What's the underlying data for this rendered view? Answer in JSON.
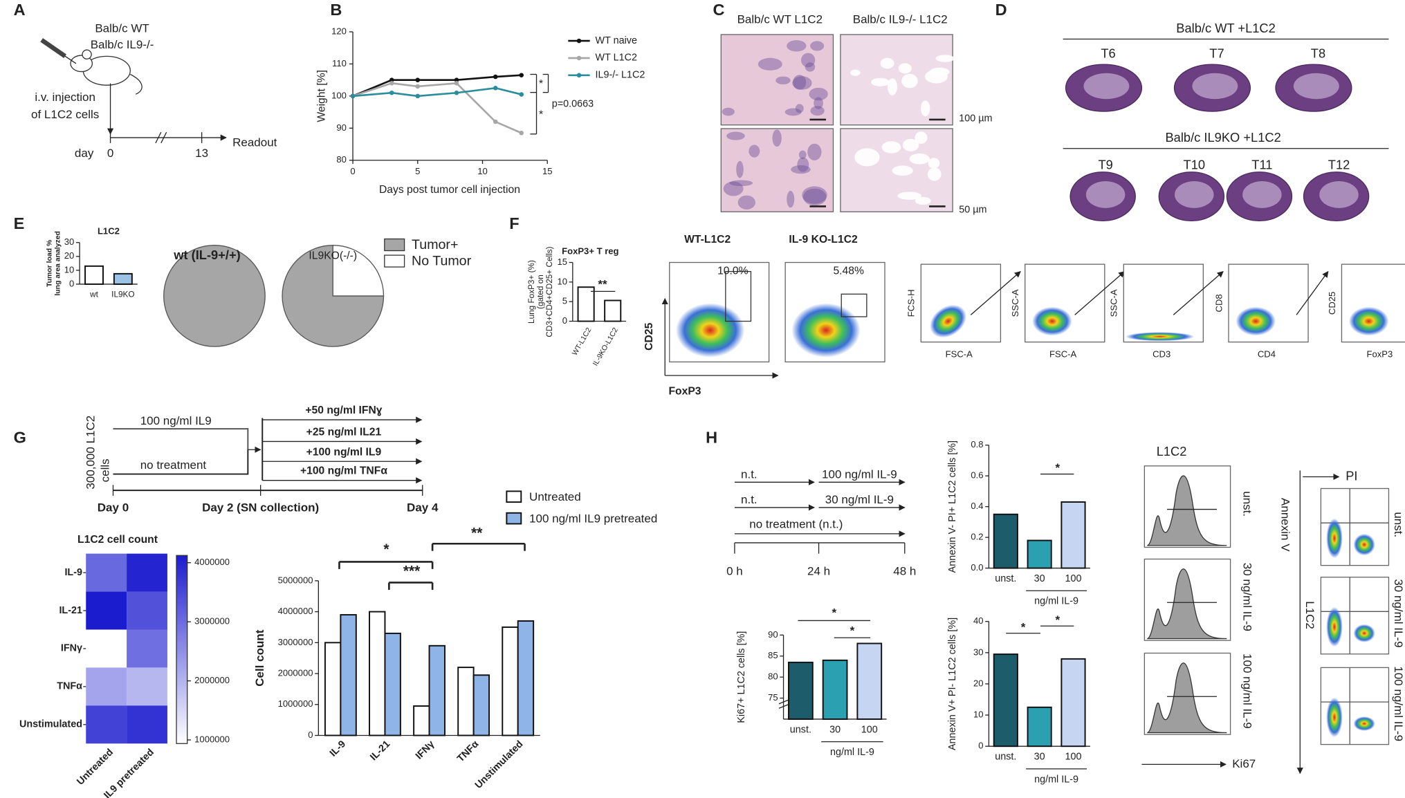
{
  "panels": {
    "A": {
      "letter": "A",
      "strains": [
        "Balb/c WT",
        "Balb/c IL9-/-"
      ],
      "injection": [
        "i.v. injection",
        "of L1C2 cells"
      ],
      "day": "day",
      "timepoints": [
        "0",
        "13"
      ],
      "readout": "Readout"
    },
    "B": {
      "letter": "B",
      "chart": {
        "type": "line",
        "ylabel": "Weight [%]",
        "xlabel": "Days post tumor cell injection",
        "x": [
          0,
          3,
          5,
          8,
          11,
          13
        ],
        "xlim": [
          0,
          15
        ],
        "ylim": [
          80,
          120
        ],
        "xticks": [
          0,
          5,
          10,
          15
        ],
        "yticks": [
          80,
          90,
          100,
          110,
          120
        ],
        "series": [
          {
            "name": "WT naive",
            "color": "#111111",
            "values": [
              100,
              105,
              105,
              105,
              106,
              106.5
            ]
          },
          {
            "name": "WT L1C2",
            "color": "#a6a6a6",
            "values": [
              100,
              104,
              103,
              104,
              92,
              88.5
            ]
          },
          {
            "name": "IL9-/- L1C2",
            "color": "#2a8c9c",
            "values": [
              100,
              101,
              100,
              101,
              102.5,
              100.5
            ]
          }
        ],
        "annotations": [
          "*",
          "*",
          "p=0.0663"
        ]
      }
    },
    "C": {
      "letter": "C",
      "columns": [
        "Balb/c WT L1C2",
        "Balb/c IL9-/- L1C2"
      ],
      "scale_bars": [
        "100 µm",
        "50 µm"
      ]
    },
    "D": {
      "letter": "D",
      "groups": [
        {
          "title": "Balb/c WT +L1C2",
          "samples": [
            "T6",
            "T7",
            "T8"
          ]
        },
        {
          "title": "Balb/c IL9KO +L1C2",
          "samples": [
            "T9",
            "T10",
            "T11",
            "T12"
          ]
        }
      ]
    },
    "E": {
      "letter": "E",
      "bar": {
        "type": "bar",
        "title": "L1C2",
        "ylabel": [
          "Tumor load %",
          "lung area analyzed"
        ],
        "categories": [
          "wt",
          "IL9KO"
        ],
        "values": [
          13,
          7.5
        ],
        "colors": [
          "#ffffff",
          "#9cc3e6"
        ],
        "ylim": [
          0,
          30
        ],
        "yticks": [
          0,
          10,
          20,
          30
        ]
      },
      "pies": {
        "type": "pie",
        "labels": [
          "Tumor+",
          "No Tumor"
        ],
        "colors": [
          "#a6a6a6",
          "#ffffff"
        ],
        "charts": [
          {
            "title": "wt (IL-9+/+)",
            "values": [
              100,
              0
            ]
          },
          {
            "title": "IL9KO(-/-)",
            "values": [
              75,
              25
            ]
          }
        ]
      }
    },
    "F": {
      "letter": "F",
      "bar": {
        "type": "bar",
        "title": "FoxP3+  T reg",
        "ylabel": [
          "Lung FoxP3+ (%)",
          "(gated on",
          "CD3+CD4+CD25+ Cells)"
        ],
        "categories": [
          "WT-L1C2",
          "IL-9KO-L1C2"
        ],
        "values": [
          8.7,
          5.3
        ],
        "colors": [
          "#ffffff",
          "#ffffff"
        ],
        "ylim": [
          0,
          15
        ],
        "yticks": [
          0,
          5,
          10,
          15
        ],
        "annotations": [
          "**"
        ]
      },
      "flow": {
        "samples": [
          "WT-L1C2",
          "IL-9 KO-L1C2"
        ],
        "gate_percent": [
          "10.0%",
          "5.48%"
        ],
        "y_axis": "CD25",
        "x_axis": "FoxP3"
      },
      "gating": [
        {
          "y": "FCS-H",
          "x": "FSC-A"
        },
        {
          "y": "SSC-A",
          "x": "FSC-A"
        },
        {
          "y": "SSC-A",
          "x": "CD3"
        },
        {
          "y": "CD8",
          "x": "CD4"
        },
        {
          "y": "CD25",
          "x": "FoxP3"
        }
      ]
    },
    "G": {
      "letter": "G",
      "scheme": {
        "cells": [
          "300,000 L1C2",
          "cells"
        ],
        "pretreatments": [
          "100 ng/ml IL9",
          "no treatment"
        ],
        "stimuli": [
          "+50 ng/ml IFNɣ",
          "+25 ng/ml IL21",
          "+100 ng/ml IL9",
          "+100 ng/ml TNFα"
        ],
        "timeline": [
          "Day 0",
          "Day 2 (SN collection)",
          "Day 4"
        ]
      },
      "heatmap": {
        "type": "heatmap",
        "title": "L1C2 cell count",
        "rows": [
          "IL-9",
          "IL-21",
          "IFNγ",
          "TNFα",
          "Unstimulated"
        ],
        "columns": [
          "Untreated",
          "IL9 pretreated"
        ],
        "values": [
          [
            3000000,
            3900000
          ],
          [
            4000000,
            3300000
          ],
          [
            950000,
            2900000
          ],
          [
            2200000,
            1950000
          ],
          [
            3500000,
            3700000
          ]
        ],
        "clim": [
          1000000,
          4000000
        ],
        "cticks": [
          1000000,
          2000000,
          3000000,
          4000000
        ],
        "colors": [
          "#ffffff",
          "#1c1ccf"
        ]
      },
      "bar": {
        "type": "bar",
        "ylabel": "Cell count",
        "categories": [
          "IL-9",
          "IL-21",
          "IFNγ",
          "TNFα",
          "Unstimulated"
        ],
        "series": [
          {
            "name": "Untreated",
            "color": "#ffffff",
            "values": [
              3000000,
              4000000,
              950000,
              2200000,
              3500000
            ]
          },
          {
            "name": "100 ng/ml IL9 pretreated",
            "color": "#8fb4e8",
            "values": [
              3900000,
              3300000,
              2900000,
              1950000,
              3700000
            ]
          }
        ],
        "ylim": [
          0,
          5000000
        ],
        "yticks": [
          0,
          1000000,
          2000000,
          3000000,
          4000000,
          5000000
        ],
        "annotations": [
          "*",
          "***",
          "**"
        ]
      }
    },
    "H": {
      "letter": "H",
      "scheme": {
        "arms": [
          {
            "pre": "n.t.",
            "treatment": "100 ng/ml IL-9"
          },
          {
            "pre": "n.t.",
            "treatment": "30 ng/ml IL-9"
          }
        ],
        "control": "no treatment (n.t.)",
        "timeline": [
          "0 h",
          "24 h",
          "48 h"
        ]
      },
      "charts": [
        {
          "type": "bar",
          "ylabel": "Ki67+ L1C2 cells [%]",
          "categories": [
            "unst.",
            "30",
            "100"
          ],
          "xlabel": "ng/ml IL-9",
          "values": [
            83.5,
            84,
            88
          ],
          "colors": [
            "#1d5c6b",
            "#2aa0b0",
            "#c5d5f2"
          ],
          "ylim": [
            70,
            90
          ],
          "yticks": [
            75,
            80,
            85,
            90
          ],
          "annotations": [
            "*",
            "*"
          ]
        },
        {
          "type": "bar",
          "ylabel": "Annexin V- PI+ L1C2 cells [%]",
          "categories": [
            "unst.",
            "30",
            "100"
          ],
          "xlabel": "ng/ml IL-9",
          "values": [
            0.35,
            0.18,
            0.43
          ],
          "colors": [
            "#1d5c6b",
            "#2aa0b0",
            "#c5d5f2"
          ],
          "ylim": [
            0,
            0.8
          ],
          "yticks": [
            {
              "value": 0,
              "label": "0.0"
            },
            0.2,
            0.4,
            0.6,
            0.8
          ],
          "annotations": [
            "*"
          ]
        },
        {
          "type": "bar",
          "ylabel": "Annexin V+ PI- L1C2 cells [%]",
          "categories": [
            "unst.",
            "30",
            "100"
          ],
          "xlabel": "ng/ml IL-9",
          "values": [
            29.5,
            12.5,
            28
          ],
          "colors": [
            "#1d5c6b",
            "#2aa0b0",
            "#c5d5f2"
          ],
          "ylim": [
            0,
            40
          ],
          "yticks": [
            0,
            10,
            20,
            30,
            40
          ],
          "annotations": [
            "*",
            "*"
          ]
        }
      ],
      "histograms": {
        "title": "L1C2",
        "conditions": [
          "unst.",
          "30 ng/ml IL-9",
          "100 ng/ml IL-9"
        ],
        "x_axis": "Ki67"
      },
      "flow": {
        "x_axis": "PI",
        "y_axis": "Annexin V",
        "cell_line": "L1C2",
        "conditions": [
          "unst.",
          "30 ng/ml IL-9",
          "100 ng/ml IL-9"
        ]
      }
    }
  }
}
